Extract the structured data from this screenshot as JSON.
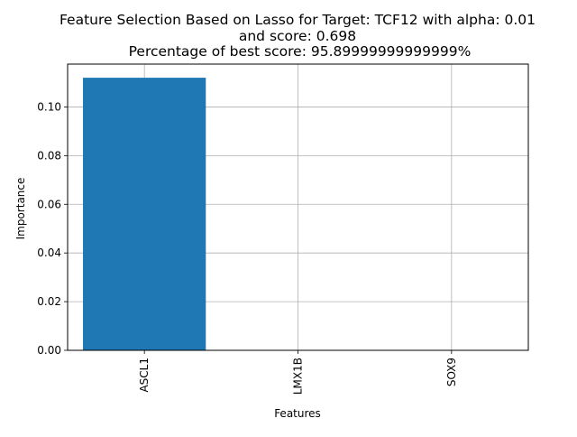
{
  "chart_data": {
    "type": "bar",
    "title_lines": [
      "Feature Selection Based on Lasso for Target: TCF12 with alpha: 0.01",
      "and score: 0.698",
      " Percentage of best score: 95.89999999999999%"
    ],
    "xlabel": "Features",
    "ylabel": "Importance",
    "categories": [
      "ASCL1",
      "LMX1B",
      "SOX9"
    ],
    "values": [
      0.112,
      0.0,
      0.0
    ],
    "ylim": [
      0.0,
      0.1176
    ],
    "yticks": [
      0.0,
      0.02,
      0.04,
      0.06,
      0.08,
      0.1
    ],
    "ytick_labels": [
      "0.00",
      "0.02",
      "0.04",
      "0.06",
      "0.08",
      "0.10"
    ],
    "grid": true,
    "bar_color": "#1f77b4",
    "grid_color": "#b0b0b0",
    "xtick_rotation": "vertical"
  }
}
